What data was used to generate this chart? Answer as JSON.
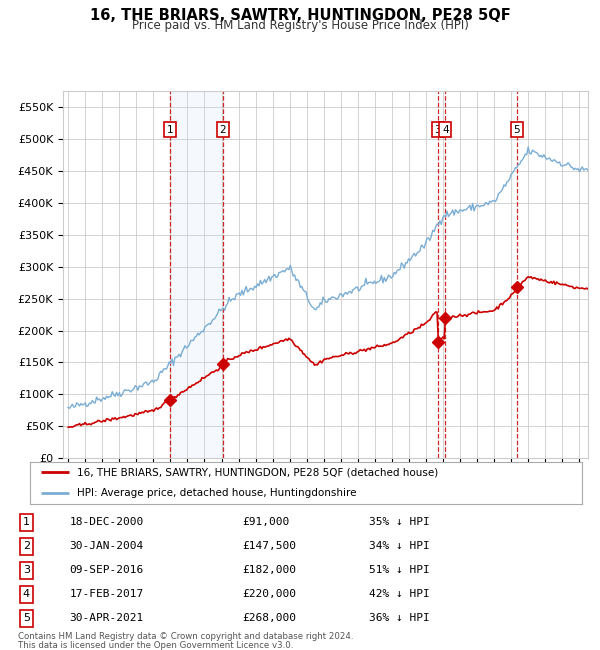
{
  "title": "16, THE BRIARS, SAWTRY, HUNTINGDON, PE28 5QF",
  "subtitle": "Price paid vs. HM Land Registry's House Price Index (HPI)",
  "ylim": [
    0,
    575000
  ],
  "yticks": [
    0,
    50000,
    100000,
    150000,
    200000,
    250000,
    300000,
    350000,
    400000,
    450000,
    500000,
    550000
  ],
  "ytick_labels": [
    "£0",
    "£50K",
    "£100K",
    "£150K",
    "£200K",
    "£250K",
    "£300K",
    "£350K",
    "£400K",
    "£450K",
    "£500K",
    "£550K"
  ],
  "xlim_start": 1994.7,
  "xlim_end": 2025.5,
  "sale_dates_decimal": [
    2000.96,
    2004.08,
    2016.69,
    2017.13,
    2021.33
  ],
  "sale_prices": [
    91000,
    147500,
    182000,
    220000,
    268000
  ],
  "sale_labels": [
    "1",
    "2",
    "3",
    "4",
    "5"
  ],
  "sale_date_strings": [
    "18-DEC-2000",
    "30-JAN-2004",
    "09-SEP-2016",
    "17-FEB-2017",
    "30-APR-2021"
  ],
  "sale_price_strings": [
    "£91,000",
    "£147,500",
    "£182,000",
    "£220,000",
    "£268,000"
  ],
  "sale_hpi_strings": [
    "35% ↓ HPI",
    "34% ↓ HPI",
    "51% ↓ HPI",
    "42% ↓ HPI",
    "36% ↓ HPI"
  ],
  "legend_line1": "16, THE BRIARS, SAWTRY, HUNTINGDON, PE28 5QF (detached house)",
  "legend_line2": "HPI: Average price, detached house, Huntingdonshire",
  "footer1": "Contains HM Land Registry data © Crown copyright and database right 2024.",
  "footer2": "This data is licensed under the Open Government Licence v3.0.",
  "red_color": "#cc0000",
  "blue_color": "#7aadd4",
  "background_color": "#ffffff",
  "grid_color": "#cccccc",
  "highlight_bg": "#ddeeff"
}
